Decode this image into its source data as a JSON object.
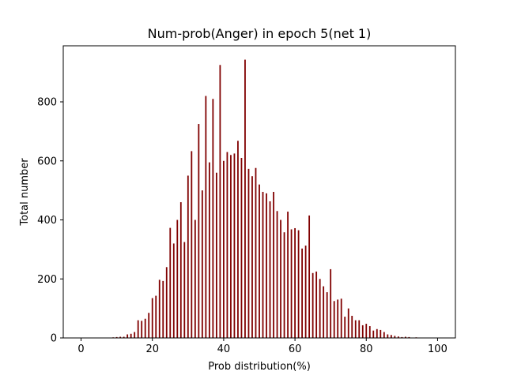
{
  "chart_data": {
    "type": "bar",
    "title": "Num-prob(Anger) in epoch 5(net 1)",
    "xlabel": "Prob distribution(%)",
    "ylabel": "Total number",
    "xlim": [
      -5,
      105
    ],
    "ylim": [
      0,
      990
    ],
    "xticks": [
      "0",
      "20",
      "40",
      "60",
      "80",
      "100"
    ],
    "yticks": [
      "0",
      "200",
      "400",
      "600",
      "800"
    ],
    "grid": false,
    "bar_color": "#800000",
    "x": [
      9,
      10,
      11,
      12,
      13,
      14,
      15,
      16,
      17,
      18,
      19,
      20,
      21,
      22,
      23,
      24,
      25,
      26,
      27,
      28,
      29,
      30,
      31,
      32,
      33,
      34,
      35,
      36,
      37,
      38,
      39,
      40,
      41,
      42,
      43,
      44,
      45,
      46,
      47,
      48,
      49,
      50,
      51,
      52,
      53,
      54,
      55,
      56,
      57,
      58,
      59,
      60,
      61,
      62,
      63,
      64,
      65,
      66,
      67,
      68,
      69,
      70,
      71,
      72,
      73,
      74,
      75,
      76,
      77,
      78,
      79,
      80,
      81,
      82,
      83,
      84,
      85,
      86,
      87,
      88,
      89,
      90,
      91,
      92,
      94
    ],
    "values": [
      2,
      3,
      4,
      4,
      12,
      14,
      20,
      60,
      58,
      65,
      85,
      135,
      143,
      197,
      193,
      240,
      373,
      320,
      400,
      460,
      325,
      550,
      633,
      400,
      725,
      500,
      820,
      595,
      810,
      560,
      925,
      600,
      630,
      620,
      625,
      668,
      610,
      943,
      573,
      548,
      576,
      520,
      495,
      490,
      463,
      495,
      430,
      400,
      358,
      428,
      368,
      372,
      365,
      303,
      313,
      415,
      220,
      225,
      200,
      175,
      155,
      233,
      125,
      130,
      133,
      72,
      100,
      75,
      60,
      60,
      43,
      48,
      40,
      25,
      30,
      27,
      20,
      12,
      10,
      7,
      5,
      3,
      4,
      3,
      2
    ]
  }
}
